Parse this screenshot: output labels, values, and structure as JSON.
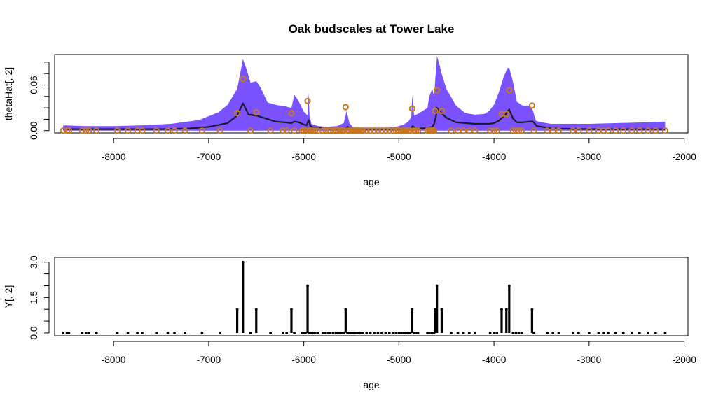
{
  "chart_data": [
    {
      "type": "area",
      "title": "Oak budscales at Tower Lake",
      "xlabel": "age",
      "ylabel": "thetaHat[, 2]",
      "xlim": [
        -8620,
        -1960
      ],
      "ylim": [
        -0.003,
        0.1
      ],
      "x_ticks": [
        -8000,
        -7000,
        -6000,
        -5000,
        -4000,
        -3000,
        -2000
      ],
      "x_tick_labels": [
        "-8000",
        "-7000",
        "-6000",
        "-5000",
        "-4000",
        "-3000",
        "-2000"
      ],
      "y_ticks": [
        0.0,
        0.015,
        0.03,
        0.045,
        0.06,
        0.075,
        0.09
      ],
      "y_tick_labels": [
        "0.00",
        "",
        "",
        "",
        "0.06",
        "",
        ""
      ],
      "colors": {
        "band": "#7B52FF",
        "line": "#1a1a2e",
        "points": "#C8781E"
      },
      "band": {
        "x": [
          -8530,
          -8300,
          -8000,
          -7700,
          -7400,
          -7100,
          -6900,
          -6800,
          -6700,
          -6640,
          -6600,
          -6560,
          -6500,
          -6460,
          -6380,
          -6300,
          -6200,
          -6130,
          -6100,
          -6060,
          -6000,
          -5960,
          -5950,
          -5940,
          -5920,
          -5850,
          -5750,
          -5650,
          -5580,
          -5550,
          -5520,
          -5480,
          -5400,
          -5300,
          -5200,
          -5100,
          -5000,
          -4950,
          -4900,
          -4870,
          -4860,
          -4840,
          -4800,
          -4750,
          -4700,
          -4680,
          -4650,
          -4630,
          -4610,
          -4600,
          -4580,
          -4550,
          -4500,
          -4400,
          -4300,
          -4200,
          -4100,
          -4050,
          -4000,
          -3950,
          -3900,
          -3860,
          -3840,
          -3800,
          -3760,
          -3700,
          -3650,
          -3600,
          -3560,
          -3500,
          -3400,
          -3300,
          -3000,
          -2700,
          -2400,
          -2200
        ],
        "lower": [
          0.0,
          0.0,
          0.0,
          0.0,
          0.0,
          0.0,
          0.0,
          0.0,
          0.0,
          0.0,
          0.0,
          0.0,
          0.0,
          0.0,
          0.0,
          0.0,
          0.0,
          0.0,
          0.0,
          0.0,
          0.0,
          0.0,
          0.0,
          0.0,
          0.0,
          0.0,
          0.0,
          0.0,
          0.0,
          0.0,
          0.0,
          0.0,
          0.0,
          0.0,
          0.0,
          0.0,
          0.0,
          0.0,
          0.0,
          0.0,
          0.0,
          0.0,
          0.0,
          0.0,
          0.0,
          0.0,
          0.0,
          0.0,
          0.0,
          0.0,
          0.0,
          0.0,
          0.0,
          0.0,
          0.0,
          0.0,
          0.0,
          0.0,
          0.0,
          0.0,
          0.0,
          0.0,
          0.0,
          0.0,
          0.0,
          0.0,
          0.0,
          0.0,
          0.0,
          0.0,
          0.0,
          0.0,
          0.0,
          0.0,
          0.0,
          0.0
        ],
        "upper": [
          0.007,
          0.006,
          0.006,
          0.007,
          0.009,
          0.014,
          0.024,
          0.034,
          0.055,
          0.094,
          0.08,
          0.063,
          0.065,
          0.058,
          0.037,
          0.034,
          0.032,
          0.03,
          0.047,
          0.04,
          0.025,
          0.02,
          0.05,
          0.02,
          0.009,
          0.006,
          0.005,
          0.006,
          0.01,
          0.026,
          0.01,
          0.004,
          0.004,
          0.004,
          0.004,
          0.004,
          0.006,
          0.008,
          0.012,
          0.018,
          0.046,
          0.02,
          0.022,
          0.026,
          0.03,
          0.045,
          0.055,
          0.045,
          0.08,
          0.098,
          0.09,
          0.075,
          0.055,
          0.033,
          0.023,
          0.021,
          0.022,
          0.026,
          0.034,
          0.05,
          0.07,
          0.082,
          0.083,
          0.064,
          0.038,
          0.033,
          0.033,
          0.03,
          0.013,
          0.011,
          0.009,
          0.009,
          0.009,
          0.01,
          0.011,
          0.012
        ]
      },
      "line": {
        "x": [
          -8530,
          -8000,
          -7500,
          -7200,
          -7000,
          -6800,
          -6700,
          -6640,
          -6600,
          -6580,
          -6500,
          -6400,
          -6300,
          -6200,
          -6130,
          -6100,
          -6050,
          -6000,
          -5970,
          -5950,
          -5930,
          -5900,
          -5800,
          -5700,
          -5600,
          -5560,
          -5540,
          -5510,
          -5450,
          -5300,
          -5000,
          -4900,
          -4870,
          -4855,
          -4830,
          -4700,
          -4650,
          -4630,
          -4610,
          -4600,
          -4570,
          -4500,
          -4400,
          -4200,
          -4050,
          -4000,
          -3950,
          -3880,
          -3840,
          -3800,
          -3760,
          -3700,
          -3620,
          -3590,
          -3550,
          -3400,
          -3000,
          -2500,
          -2200
        ],
        "y": [
          0.002,
          0.002,
          0.002,
          0.003,
          0.005,
          0.01,
          0.02,
          0.036,
          0.026,
          0.021,
          0.02,
          0.016,
          0.012,
          0.011,
          0.01,
          0.012,
          0.011,
          0.008,
          0.007,
          0.014,
          0.006,
          0.004,
          0.003,
          0.002,
          0.002,
          0.002,
          0.005,
          0.002,
          0.002,
          0.002,
          0.002,
          0.002,
          0.003,
          0.006,
          0.003,
          0.003,
          0.005,
          0.009,
          0.019,
          0.03,
          0.025,
          0.017,
          0.011,
          0.009,
          0.009,
          0.01,
          0.013,
          0.021,
          0.028,
          0.016,
          0.011,
          0.011,
          0.012,
          0.012,
          0.006,
          0.003,
          0.002,
          0.002,
          0.002
        ]
      },
      "points": {
        "x": [
          -8530,
          -8490,
          -8470,
          -8330,
          -8290,
          -8260,
          -8180,
          -7960,
          -7850,
          -7750,
          -7700,
          -7550,
          -7430,
          -7360,
          -7250,
          -7070,
          -6880,
          -6700,
          -6640,
          -6560,
          -6500,
          -6350,
          -6220,
          -6180,
          -6130,
          -6100,
          -6020,
          -6000,
          -5980,
          -5960,
          -5940,
          -5920,
          -5900,
          -5880,
          -5850,
          -5800,
          -5770,
          -5740,
          -5720,
          -5690,
          -5660,
          -5640,
          -5620,
          -5600,
          -5580,
          -5560,
          -5540,
          -5520,
          -5500,
          -5480,
          -5460,
          -5440,
          -5420,
          -5400,
          -5380,
          -5340,
          -5300,
          -5260,
          -5220,
          -5180,
          -5140,
          -5100,
          -5060,
          -5030,
          -5000,
          -4980,
          -4960,
          -4940,
          -4920,
          -4900,
          -4880,
          -4860,
          -4840,
          -4820,
          -4800,
          -4700,
          -4680,
          -4670,
          -4660,
          -4650,
          -4640,
          -4630,
          -4620,
          -4600,
          -4550,
          -4450,
          -4380,
          -4320,
          -4260,
          -4200,
          -4040,
          -4000,
          -3970,
          -3920,
          -3870,
          -3840,
          -3800,
          -3770,
          -3740,
          -3710,
          -3600,
          -3580,
          -3440,
          -3380,
          -3320,
          -3170,
          -3110,
          -3000,
          -2900,
          -2850,
          -2800,
          -2720,
          -2640,
          -2550,
          -2470,
          -2380,
          -2300,
          -2200
        ],
        "y": [
          0.0,
          0.0,
          0.0,
          0.0,
          0.0,
          0.0,
          0.0,
          0.0,
          0.0,
          0.0,
          0.0,
          0.0,
          0.0,
          0.0,
          0.0,
          0.0,
          0.0,
          0.023,
          0.068,
          0.0,
          0.024,
          0.0,
          0.0,
          0.0,
          0.023,
          0.0,
          0.0,
          0.0,
          0.0,
          0.039,
          0.0,
          0.0,
          0.0,
          0.0,
          0.0,
          0.0,
          0.0,
          0.0,
          0.0,
          0.0,
          0.0,
          0.0,
          0.0,
          0.0,
          0.0,
          0.031,
          0.0,
          0.0,
          0.0,
          0.0,
          0.0,
          0.0,
          0.0,
          0.0,
          0.0,
          0.0,
          0.0,
          0.0,
          0.0,
          0.0,
          0.0,
          0.0,
          0.0,
          0.0,
          0.0,
          0.0,
          0.0,
          0.0,
          0.0,
          0.0,
          0.0,
          0.029,
          0.0,
          0.0,
          0.0,
          0.0,
          0.0,
          0.0,
          0.0,
          0.0,
          0.0,
          0.0,
          0.026,
          0.053,
          0.026,
          0.0,
          0.0,
          0.0,
          0.0,
          0.0,
          0.0,
          0.0,
          0.0,
          0.022,
          0.022,
          0.053,
          0.0,
          0.0,
          0.0,
          0.0,
          0.033,
          0.0,
          0.0,
          0.0,
          0.0,
          0.0,
          0.0,
          0.0,
          0.0,
          0.0,
          0.0,
          0.0,
          0.0,
          0.0,
          0.0,
          0.0,
          0.0,
          0.0
        ]
      }
    },
    {
      "type": "bar",
      "title": "",
      "xlabel": "age",
      "ylabel": "Y[, 2]",
      "xlim": [
        -8620,
        -1960
      ],
      "ylim": [
        -0.12,
        3.2
      ],
      "x_ticks": [
        -8000,
        -7000,
        -6000,
        -5000,
        -4000,
        -3000,
        -2000
      ],
      "x_tick_labels": [
        "-8000",
        "-7000",
        "-6000",
        "-5000",
        "-4000",
        "-3000",
        "-2000"
      ],
      "y_ticks": [
        0.0,
        0.5,
        1.0,
        1.5,
        2.0,
        2.5,
        3.0
      ],
      "y_tick_labels": [
        "0.0",
        "",
        "",
        "1.5",
        "",
        "",
        "3.0"
      ],
      "colors": {
        "bars": "#000000"
      },
      "x": [
        -8530,
        -8490,
        -8470,
        -8330,
        -8290,
        -8260,
        -8180,
        -7960,
        -7850,
        -7750,
        -7700,
        -7550,
        -7430,
        -7360,
        -7250,
        -7070,
        -6880,
        -6700,
        -6640,
        -6560,
        -6500,
        -6350,
        -6220,
        -6180,
        -6130,
        -6100,
        -6020,
        -6000,
        -5980,
        -5960,
        -5940,
        -5920,
        -5900,
        -5880,
        -5850,
        -5800,
        -5770,
        -5740,
        -5720,
        -5690,
        -5660,
        -5640,
        -5620,
        -5600,
        -5580,
        -5560,
        -5540,
        -5520,
        -5500,
        -5480,
        -5460,
        -5440,
        -5420,
        -5400,
        -5380,
        -5340,
        -5300,
        -5260,
        -5220,
        -5180,
        -5140,
        -5100,
        -5060,
        -5030,
        -5000,
        -4980,
        -4960,
        -4940,
        -4920,
        -4900,
        -4880,
        -4860,
        -4840,
        -4820,
        -4800,
        -4700,
        -4680,
        -4670,
        -4660,
        -4650,
        -4640,
        -4630,
        -4620,
        -4600,
        -4550,
        -4450,
        -4380,
        -4320,
        -4260,
        -4200,
        -4040,
        -4000,
        -3970,
        -3920,
        -3870,
        -3840,
        -3800,
        -3770,
        -3740,
        -3710,
        -3600,
        -3580,
        -3440,
        -3380,
        -3320,
        -3170,
        -3110,
        -3000,
        -2900,
        -2850,
        -2800,
        -2720,
        -2640,
        -2550,
        -2470,
        -2380,
        -2300,
        -2200
      ],
      "values": [
        0,
        0,
        0,
        0,
        0,
        0,
        0,
        0,
        0,
        0,
        0,
        0,
        0,
        0,
        0,
        0,
        0,
        1,
        3,
        0,
        1,
        0,
        0,
        0,
        1,
        0,
        0,
        0,
        0,
        2,
        0,
        0,
        0,
        0,
        0,
        0,
        0,
        0,
        0,
        0,
        0,
        0,
        0,
        0,
        0,
        1,
        0,
        0,
        0,
        0,
        0,
        0,
        0,
        0,
        0,
        0,
        0,
        0,
        0,
        0,
        0,
        0,
        0,
        0,
        0,
        0,
        0,
        0,
        0,
        0,
        0,
        1,
        0,
        0,
        0,
        0,
        0,
        0,
        0,
        0,
        0,
        0,
        1,
        2,
        1,
        0,
        0,
        0,
        0,
        0,
        0,
        0,
        0,
        1,
        1,
        2,
        0,
        0,
        0,
        0,
        1,
        0,
        0,
        0,
        0,
        0,
        0,
        0,
        0,
        0,
        0,
        0,
        0,
        0,
        0,
        0,
        0,
        0
      ]
    }
  ]
}
